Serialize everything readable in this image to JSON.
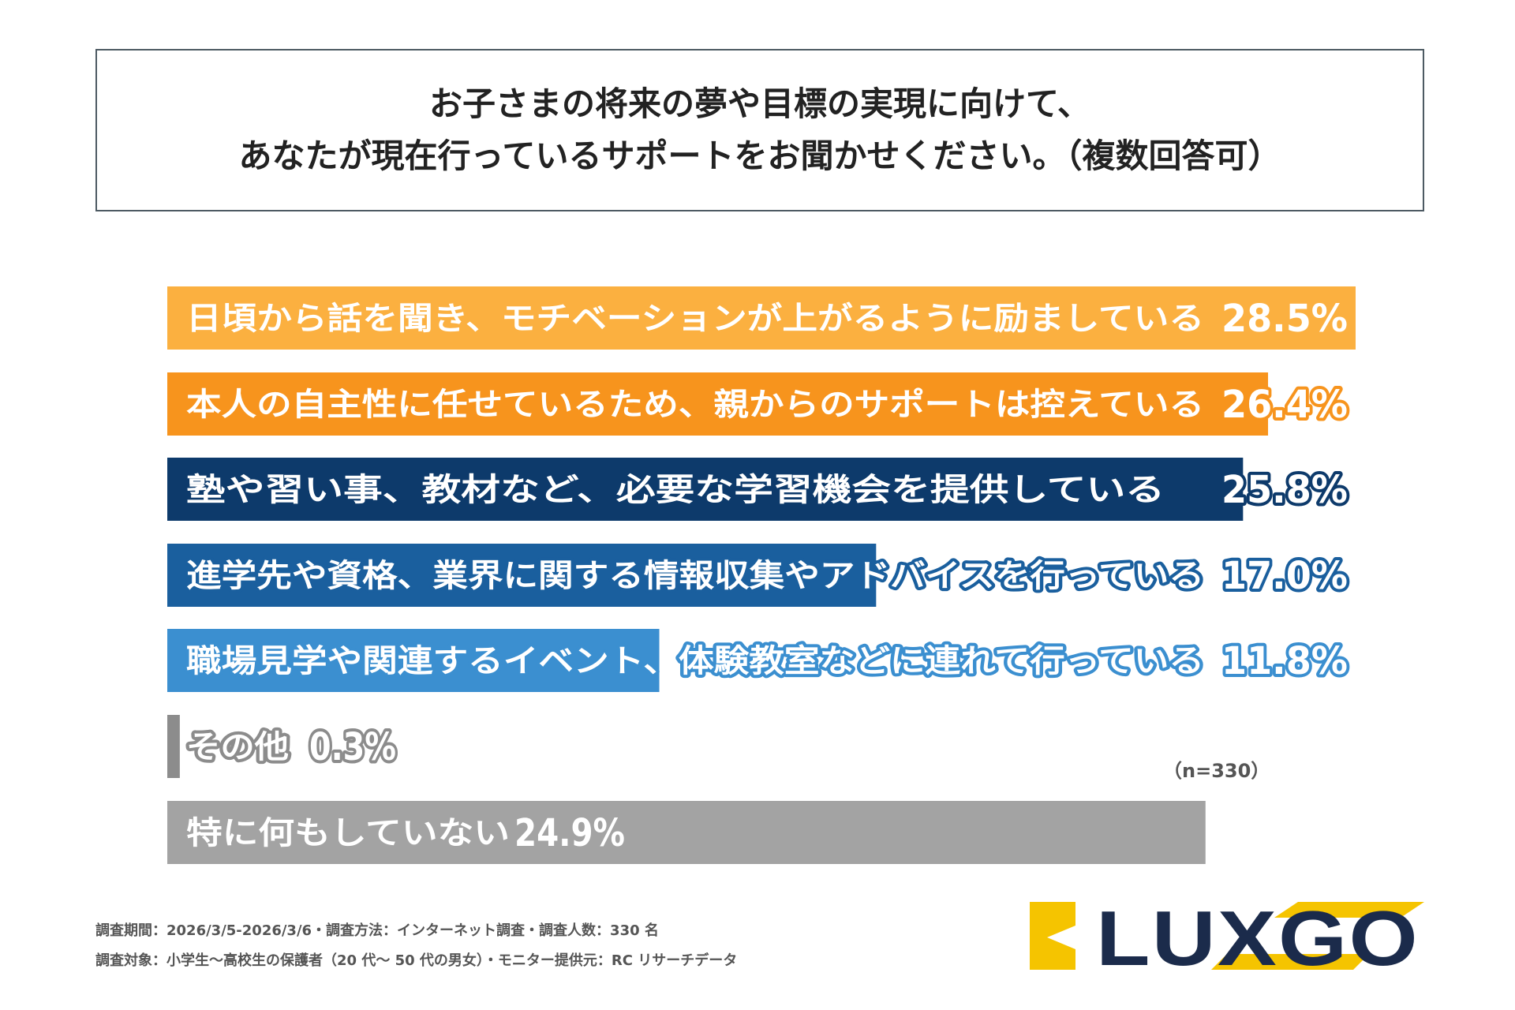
{
  "title": {
    "line1": "お子さまの将来の夢や目標の実現に向けて、",
    "line2": "あなたが現在行っているサポートをお聞かせください。（複数回答可）"
  },
  "chart_data": {
    "type": "bar",
    "orientation": "horizontal",
    "categories": [
      "日頃から話を聞き、モチベーションが上がるように励ましている",
      "本人の自主性に任せているため、親からのサポートは控えている",
      "塾や習い事、教材など、必要な学習機会を提供している",
      "進学先や資格、業界に関する情報収集やアドバイスを行っている",
      "職場見学や関連するイベント、体験教室などに連れて行っている",
      "その他",
      "特に何もしていない"
    ],
    "values": [
      28.5,
      26.4,
      25.8,
      17.0,
      11.8,
      0.3,
      24.9
    ],
    "value_labels": [
      "28.5%",
      "26.4%",
      "25.8%",
      "17.0%",
      "11.8%",
      "0.3%",
      "24.9%"
    ],
    "colors": [
      "#fbb040",
      "#f7941d",
      "#0d3a6b",
      "#1a5f9e",
      "#3b8fd0",
      "#8c8c8c",
      "#a3a3a3"
    ],
    "xlim": [
      0,
      28.5
    ],
    "note": "（n=330）"
  },
  "footnotes": {
    "line1": "調査期間：2026/3/5-2026/3/6・調査方法：インターネット調査・調査人数：330 名",
    "line2": "調査対象：小学生～高校生の保護者（20 代～ 50 代の男女）・モニター提供元：RC リサーチデータ"
  },
  "logo": {
    "text": "LUXGO",
    "text_color": "#1b2b4b",
    "accent_color": "#f5c400"
  }
}
